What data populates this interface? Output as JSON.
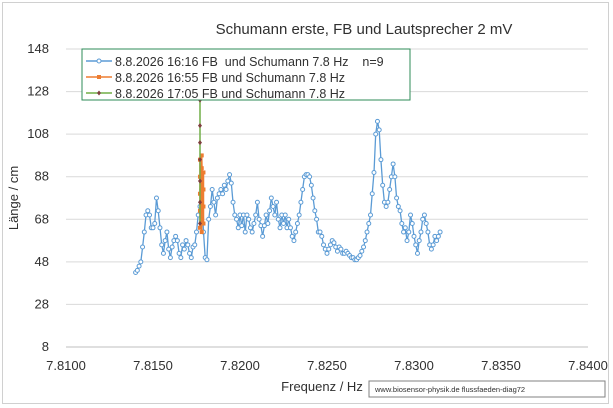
{
  "chart_data": {
    "type": "line",
    "title": "Schumann erste, FB und Lautsprecher 2 mV",
    "xlabel": "Frequenz / Hz",
    "ylabel": "Länge / cm",
    "xlim": [
      7.81,
      7.84
    ],
    "ylim": [
      8,
      148
    ],
    "x_ticks": [
      "7.8100",
      "7.8150",
      "7.8200",
      "7.8250",
      "7.8300",
      "7.8350",
      "7.8400"
    ],
    "y_ticks": [
      "8",
      "28",
      "48",
      "68",
      "88",
      "108",
      "128",
      "148"
    ],
    "grid": "horizontal",
    "legend_position": "top-left",
    "watermark": "www.biosensor-physik.de  flussfaeden-diag72",
    "series": [
      {
        "name": "8.8.2026 16:16 FB  und Schumann 7.8 Hz    n=9",
        "color": "#5b9bd5",
        "marker": "circle",
        "points": [
          [
            7.814,
            43
          ],
          [
            7.8141,
            44
          ],
          [
            7.8142,
            46
          ],
          [
            7.8143,
            48
          ],
          [
            7.8144,
            55
          ],
          [
            7.8145,
            62
          ],
          [
            7.8146,
            70
          ],
          [
            7.8147,
            72
          ],
          [
            7.8148,
            70
          ],
          [
            7.8149,
            64
          ],
          [
            7.815,
            64
          ],
          [
            7.8151,
            66
          ],
          [
            7.8152,
            78
          ],
          [
            7.8153,
            72
          ],
          [
            7.8154,
            64
          ],
          [
            7.8155,
            56
          ],
          [
            7.8156,
            52
          ],
          [
            7.8157,
            58
          ],
          [
            7.8158,
            62
          ],
          [
            7.8159,
            54
          ],
          [
            7.816,
            50
          ],
          [
            7.8161,
            55
          ],
          [
            7.8162,
            58
          ],
          [
            7.8163,
            60
          ],
          [
            7.8164,
            58
          ],
          [
            7.8165,
            52
          ],
          [
            7.8166,
            50
          ],
          [
            7.8167,
            56
          ],
          [
            7.8168,
            54
          ],
          [
            7.8169,
            58
          ],
          [
            7.817,
            56
          ],
          [
            7.8171,
            52
          ],
          [
            7.8172,
            50
          ],
          [
            7.8173,
            55
          ],
          [
            7.8174,
            56
          ],
          [
            7.8175,
            62
          ],
          [
            7.8176,
            70
          ],
          [
            7.8177,
            74
          ],
          [
            7.8178,
            82
          ],
          [
            7.8179,
            62
          ],
          [
            7.818,
            50
          ],
          [
            7.8181,
            49
          ],
          [
            7.8182,
            68
          ],
          [
            7.8183,
            74
          ],
          [
            7.8184,
            82
          ],
          [
            7.8185,
            76
          ],
          [
            7.8186,
            70
          ],
          [
            7.8187,
            78
          ],
          [
            7.8188,
            80
          ],
          [
            7.8189,
            82
          ],
          [
            7.819,
            80
          ],
          [
            7.8191,
            84
          ],
          [
            7.8192,
            82
          ],
          [
            7.8193,
            86
          ],
          [
            7.8194,
            89
          ],
          [
            7.8195,
            85
          ],
          [
            7.8196,
            76
          ],
          [
            7.8197,
            70
          ],
          [
            7.8198,
            68
          ],
          [
            7.8199,
            64
          ],
          [
            7.82,
            70
          ],
          [
            7.8201,
            65
          ],
          [
            7.8202,
            70
          ],
          [
            7.8203,
            62
          ],
          [
            7.8204,
            70
          ],
          [
            7.8205,
            68
          ],
          [
            7.8206,
            64
          ],
          [
            7.8207,
            62
          ],
          [
            7.8208,
            66
          ],
          [
            7.8209,
            70
          ],
          [
            7.821,
            76
          ],
          [
            7.8211,
            68
          ],
          [
            7.8212,
            65
          ],
          [
            7.8213,
            60
          ],
          [
            7.8214,
            65
          ],
          [
            7.8215,
            70
          ],
          [
            7.8216,
            66
          ],
          [
            7.8217,
            72
          ],
          [
            7.8218,
            78
          ],
          [
            7.8219,
            74
          ],
          [
            7.822,
            70
          ],
          [
            7.8221,
            76
          ],
          [
            7.8222,
            68
          ],
          [
            7.8223,
            64
          ],
          [
            7.8224,
            70
          ],
          [
            7.8225,
            66
          ],
          [
            7.8226,
            70
          ],
          [
            7.8227,
            64
          ],
          [
            7.8228,
            68
          ],
          [
            7.8229,
            64
          ],
          [
            7.823,
            60
          ],
          [
            7.8231,
            58
          ],
          [
            7.8232,
            62
          ],
          [
            7.8233,
            66
          ],
          [
            7.8234,
            70
          ],
          [
            7.8235,
            76
          ],
          [
            7.8236,
            82
          ],
          [
            7.8237,
            88
          ],
          [
            7.8238,
            89
          ],
          [
            7.8239,
            89
          ],
          [
            7.824,
            88
          ],
          [
            7.8241,
            84
          ],
          [
            7.8242,
            78
          ],
          [
            7.8243,
            72
          ],
          [
            7.8244,
            68
          ],
          [
            7.8245,
            62
          ],
          [
            7.8246,
            62
          ],
          [
            7.8247,
            60
          ],
          [
            7.8248,
            56
          ],
          [
            7.8249,
            54
          ],
          [
            7.825,
            52
          ],
          [
            7.8251,
            54
          ],
          [
            7.8252,
            56
          ],
          [
            7.8253,
            58
          ],
          [
            7.8254,
            57
          ],
          [
            7.8255,
            55
          ],
          [
            7.8256,
            53
          ],
          [
            7.8257,
            55
          ],
          [
            7.8258,
            54
          ],
          [
            7.8259,
            52
          ],
          [
            7.826,
            52
          ],
          [
            7.8261,
            53
          ],
          [
            7.8262,
            52
          ],
          [
            7.8263,
            51
          ],
          [
            7.8264,
            50
          ],
          [
            7.8265,
            50
          ],
          [
            7.8266,
            49
          ],
          [
            7.8267,
            49
          ],
          [
            7.8268,
            50
          ],
          [
            7.8269,
            51
          ],
          [
            7.827,
            53
          ],
          [
            7.8271,
            55
          ],
          [
            7.8272,
            58
          ],
          [
            7.8273,
            62
          ],
          [
            7.8274,
            66
          ],
          [
            7.8275,
            70
          ],
          [
            7.8276,
            80
          ],
          [
            7.8277,
            90
          ],
          [
            7.8278,
            108
          ],
          [
            7.8279,
            114
          ],
          [
            7.828,
            110
          ],
          [
            7.8281,
            96
          ],
          [
            7.8282,
            84
          ],
          [
            7.8283,
            76
          ],
          [
            7.8284,
            74
          ],
          [
            7.8285,
            76
          ],
          [
            7.8286,
            82
          ],
          [
            7.8287,
            88
          ],
          [
            7.8288,
            94
          ],
          [
            7.8289,
            88
          ],
          [
            7.829,
            78
          ],
          [
            7.8291,
            74
          ],
          [
            7.8292,
            72
          ],
          [
            7.8293,
            66
          ],
          [
            7.8294,
            62
          ],
          [
            7.8295,
            64
          ],
          [
            7.8296,
            58
          ],
          [
            7.8297,
            62
          ],
          [
            7.8298,
            70
          ],
          [
            7.8299,
            66
          ],
          [
            7.83,
            60
          ],
          [
            7.8301,
            56
          ],
          [
            7.8302,
            52
          ],
          [
            7.8303,
            58
          ],
          [
            7.8304,
            62
          ],
          [
            7.8305,
            68
          ],
          [
            7.8306,
            70
          ],
          [
            7.8307,
            66
          ],
          [
            7.8308,
            62
          ],
          [
            7.8309,
            56
          ],
          [
            7.831,
            54
          ],
          [
            7.8311,
            56
          ],
          [
            7.8312,
            60
          ],
          [
            7.8313,
            58
          ],
          [
            7.8314,
            60
          ],
          [
            7.8315,
            62
          ]
        ]
      },
      {
        "name": "8.8.2026 16:55 FB und Schumann 7.8 Hz",
        "color": "#ed7d31",
        "marker": "square",
        "points": [
          [
            7.8177,
            64
          ],
          [
            7.8177,
            72
          ],
          [
            7.8177,
            80
          ],
          [
            7.8177,
            88
          ],
          [
            7.8177,
            96
          ],
          [
            7.8178,
            62
          ],
          [
            7.8178,
            68
          ],
          [
            7.8178,
            76
          ],
          [
            7.8178,
            84
          ],
          [
            7.8178,
            92
          ],
          [
            7.8178,
            98
          ],
          [
            7.8179,
            66
          ],
          [
            7.8179,
            74
          ],
          [
            7.8179,
            82
          ],
          [
            7.8179,
            90
          ]
        ]
      },
      {
        "name": "8.8.2026 17:05 FB und Schumann 7.8 Hz",
        "color": "#70ad47",
        "marker": "diamond",
        "points": [
          [
            7.8177,
            66
          ],
          [
            7.8177,
            76
          ],
          [
            7.8177,
            86
          ],
          [
            7.8177,
            96
          ],
          [
            7.8177,
            104
          ],
          [
            7.8177,
            112
          ],
          [
            7.8177,
            124
          ]
        ]
      }
    ]
  }
}
